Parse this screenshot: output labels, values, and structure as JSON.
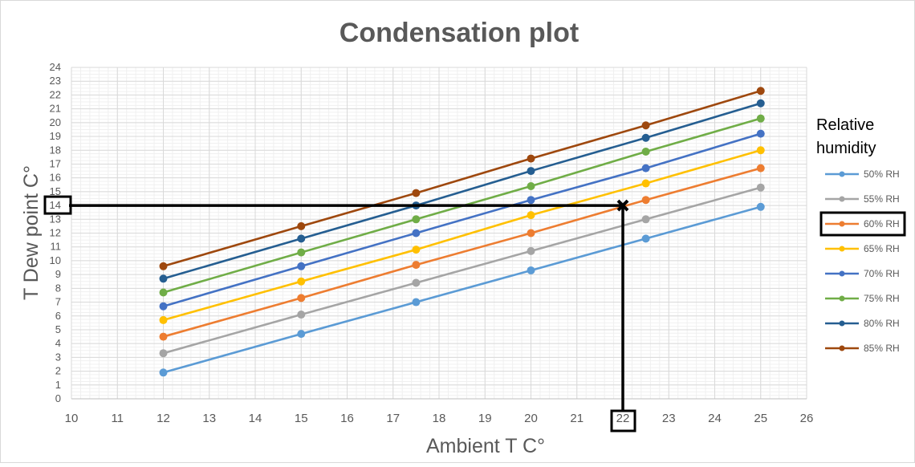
{
  "chart_data": {
    "type": "line",
    "title": "Condensation plot",
    "xlabel": "Ambient T C°",
    "ylabel": "T Dew point C°",
    "xlim": [
      10,
      26
    ],
    "ylim": [
      0,
      24
    ],
    "x_ticks": [
      10,
      11,
      12,
      13,
      14,
      15,
      16,
      17,
      18,
      19,
      20,
      21,
      22,
      23,
      24,
      25,
      26
    ],
    "y_ticks": [
      0,
      1,
      2,
      3,
      4,
      5,
      6,
      7,
      8,
      9,
      10,
      11,
      12,
      13,
      14,
      15,
      16,
      17,
      18,
      19,
      20,
      21,
      22,
      23,
      24
    ],
    "grid": true,
    "minor_grid": true,
    "legend_title": "Relative humidity",
    "legend_position": "right",
    "x": [
      12,
      15,
      17.5,
      20,
      22.5,
      25
    ],
    "series": [
      {
        "name": "50% RH",
        "color": "#5b9bd5",
        "values": [
          1.9,
          4.7,
          7.0,
          9.3,
          11.6,
          13.9
        ]
      },
      {
        "name": "55% RH",
        "color": "#a5a5a5",
        "values": [
          3.3,
          6.1,
          8.4,
          10.7,
          13.0,
          15.3
        ]
      },
      {
        "name": "60% RH",
        "color": "#ed7d31",
        "values": [
          4.5,
          7.3,
          9.7,
          12.0,
          14.4,
          16.7
        ]
      },
      {
        "name": "65% RH",
        "color": "#ffc000",
        "values": [
          5.7,
          8.5,
          10.8,
          13.3,
          15.6,
          18.0
        ]
      },
      {
        "name": "70% RH",
        "color": "#4472c4",
        "values": [
          6.7,
          9.6,
          12.0,
          14.4,
          16.7,
          19.2
        ]
      },
      {
        "name": "75% RH",
        "color": "#70ad47",
        "values": [
          7.7,
          10.6,
          13.0,
          15.4,
          17.9,
          20.3
        ]
      },
      {
        "name": "80% RH",
        "color": "#255e91",
        "values": [
          8.7,
          11.6,
          14.0,
          16.5,
          18.9,
          21.4
        ]
      },
      {
        "name": "85% RH",
        "color": "#9e480e",
        "values": [
          9.6,
          12.5,
          14.9,
          17.4,
          19.8,
          22.3
        ]
      }
    ],
    "annotation": {
      "point": [
        22,
        14
      ],
      "marker": "x",
      "highlighted_x_tick": 22,
      "highlighted_y_tick": 14,
      "highlighted_legend_entry": "60% RH"
    }
  }
}
